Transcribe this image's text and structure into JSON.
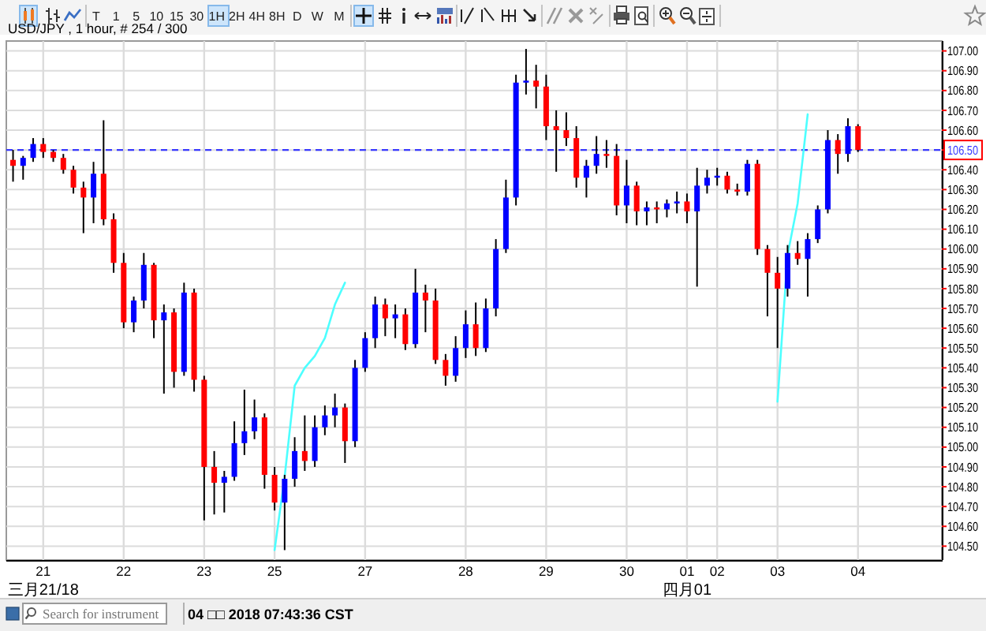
{
  "chart_data": {
    "type": "candlestick",
    "title": "USD/JPY , 1 hour, # 254 / 300",
    "categories": [
      null,
      null,
      null,
      "21",
      null,
      null,
      null,
      null,
      null,
      null,
      null,
      "22",
      null,
      null,
      null,
      null,
      null,
      null,
      null,
      "23",
      null,
      null,
      null,
      null,
      null,
      null,
      "25",
      null,
      null,
      null,
      null,
      null,
      null,
      null,
      null,
      "27",
      null,
      null,
      null,
      null,
      null,
      null,
      null,
      null,
      null,
      "28",
      null,
      null,
      null,
      null,
      null,
      null,
      null,
      "29",
      null,
      null,
      null,
      null,
      null,
      null,
      null,
      "30",
      null,
      null,
      null,
      null,
      null,
      "01",
      null,
      null,
      "02",
      null,
      null,
      null,
      null,
      null,
      "03",
      null,
      null,
      null,
      null,
      null,
      null,
      null,
      "04",
      null,
      null,
      null,
      null,
      null,
      null,
      null,
      null
    ],
    "ohlc": [
      [
        106.45,
        106.5,
        106.34,
        106.42
      ],
      [
        106.42,
        106.47,
        106.35,
        106.46
      ],
      [
        106.46,
        106.56,
        106.44,
        106.53
      ],
      [
        106.53,
        106.56,
        106.46,
        106.49
      ],
      [
        106.49,
        106.5,
        106.44,
        106.46
      ],
      [
        106.46,
        106.48,
        106.38,
        106.4
      ],
      [
        106.4,
        106.42,
        106.28,
        106.31
      ],
      [
        106.31,
        106.34,
        106.08,
        106.26
      ],
      [
        106.26,
        106.44,
        106.13,
        106.38
      ],
      [
        106.38,
        106.65,
        106.12,
        106.15
      ],
      [
        106.15,
        106.18,
        105.88,
        105.93
      ],
      [
        105.93,
        105.98,
        105.6,
        105.63
      ],
      [
        105.63,
        105.76,
        105.58,
        105.74
      ],
      [
        105.74,
        105.98,
        105.7,
        105.92
      ],
      [
        105.92,
        105.93,
        105.55,
        105.64
      ],
      [
        105.64,
        105.72,
        105.27,
        105.68
      ],
      [
        105.68,
        105.7,
        105.3,
        105.38
      ],
      [
        105.38,
        105.83,
        105.36,
        105.78
      ],
      [
        105.78,
        105.8,
        105.28,
        105.34
      ],
      [
        105.34,
        105.36,
        104.63,
        104.9
      ],
      [
        104.9,
        104.98,
        104.66,
        104.82
      ],
      [
        104.82,
        104.88,
        104.67,
        104.85
      ],
      [
        104.85,
        105.13,
        104.83,
        105.02
      ],
      [
        105.02,
        105.29,
        104.96,
        105.08
      ],
      [
        105.08,
        105.24,
        105.04,
        105.15
      ],
      [
        105.15,
        105.17,
        104.79,
        104.86
      ],
      [
        104.86,
        104.9,
        104.68,
        104.72
      ],
      [
        104.72,
        104.86,
        104.48,
        104.84
      ],
      [
        104.84,
        105.05,
        104.8,
        104.98
      ],
      [
        104.98,
        105.16,
        104.88,
        104.93
      ],
      [
        104.93,
        105.16,
        104.9,
        105.1
      ],
      [
        105.1,
        105.21,
        105.06,
        105.16
      ],
      [
        105.16,
        105.27,
        105.1,
        105.2
      ],
      [
        105.2,
        105.22,
        104.92,
        105.03
      ],
      [
        105.03,
        105.44,
        105.0,
        105.4
      ],
      [
        105.4,
        105.58,
        105.38,
        105.55
      ],
      [
        105.55,
        105.76,
        105.5,
        105.72
      ],
      [
        105.72,
        105.75,
        105.56,
        105.65
      ],
      [
        105.65,
        105.72,
        105.55,
        105.67
      ],
      [
        105.67,
        105.7,
        105.49,
        105.52
      ],
      [
        105.52,
        105.9,
        105.5,
        105.78
      ],
      [
        105.78,
        105.82,
        105.58,
        105.74
      ],
      [
        105.74,
        105.8,
        105.42,
        105.44
      ],
      [
        105.44,
        105.47,
        105.31,
        105.36
      ],
      [
        105.36,
        105.56,
        105.33,
        105.5
      ],
      [
        105.5,
        105.69,
        105.45,
        105.62
      ],
      [
        105.62,
        105.73,
        105.46,
        105.5
      ],
      [
        105.5,
        105.75,
        105.48,
        105.7
      ],
      [
        105.7,
        106.05,
        105.66,
        106.0
      ],
      [
        106.0,
        106.35,
        105.98,
        106.26
      ],
      [
        106.26,
        106.88,
        106.22,
        106.84
      ],
      [
        106.84,
        107.01,
        106.78,
        106.85
      ],
      [
        106.85,
        106.93,
        106.71,
        106.82
      ],
      [
        106.82,
        106.88,
        106.55,
        106.62
      ],
      [
        106.62,
        106.7,
        106.39,
        106.6
      ],
      [
        106.6,
        106.69,
        106.52,
        106.56
      ],
      [
        106.56,
        106.62,
        106.31,
        106.36
      ],
      [
        106.36,
        106.45,
        106.26,
        106.42
      ],
      [
        106.42,
        106.57,
        106.38,
        106.48
      ],
      [
        106.48,
        106.55,
        106.41,
        106.47
      ],
      [
        106.47,
        106.53,
        106.17,
        106.22
      ],
      [
        106.22,
        106.45,
        106.13,
        106.32
      ],
      [
        106.32,
        106.34,
        106.12,
        106.19
      ],
      [
        106.19,
        106.24,
        106.12,
        106.21
      ],
      [
        106.21,
        106.24,
        106.13,
        106.2
      ],
      [
        106.2,
        106.25,
        106.16,
        106.23
      ],
      [
        106.23,
        106.29,
        106.18,
        106.24
      ],
      [
        106.24,
        106.28,
        106.13,
        106.19
      ],
      [
        106.19,
        106.41,
        105.81,
        106.32
      ],
      [
        106.32,
        106.4,
        106.28,
        106.36
      ],
      [
        106.36,
        106.41,
        106.32,
        106.37
      ],
      [
        106.37,
        106.39,
        106.28,
        106.3
      ],
      [
        106.3,
        106.33,
        106.27,
        106.29
      ],
      [
        106.29,
        106.45,
        106.27,
        106.43
      ],
      [
        106.43,
        106.45,
        105.97,
        106.0
      ],
      [
        106.0,
        106.02,
        105.66,
        105.88
      ],
      [
        105.88,
        105.96,
        105.5,
        105.8
      ],
      [
        105.8,
        106.02,
        105.76,
        105.98
      ],
      [
        105.98,
        106.04,
        105.92,
        105.95
      ],
      [
        105.95,
        106.08,
        105.76,
        106.05
      ],
      [
        106.05,
        106.22,
        106.03,
        106.2
      ],
      [
        106.2,
        106.6,
        106.18,
        106.55
      ],
      [
        106.55,
        106.58,
        106.38,
        106.48
      ],
      [
        106.48,
        106.66,
        106.44,
        106.62
      ],
      [
        106.62,
        106.63,
        106.49,
        106.5
      ],
      null,
      null,
      null,
      null,
      null,
      null,
      null,
      null
    ],
    "ylim": [
      104.43,
      107.05
    ],
    "yticks": [
      {
        "value": 104.5,
        "label": "104.50"
      },
      {
        "value": 104.6,
        "label": "104.60"
      },
      {
        "value": 104.7,
        "label": "104.70"
      },
      {
        "value": 104.8,
        "label": "104.80"
      },
      {
        "value": 104.9,
        "label": "104.90"
      },
      {
        "value": 105.0,
        "label": "105.00"
      },
      {
        "value": 105.1,
        "label": "105.10"
      },
      {
        "value": 105.2,
        "label": "105.20"
      },
      {
        "value": 105.3,
        "label": "105.30"
      },
      {
        "value": 105.4,
        "label": "105.40"
      },
      {
        "value": 105.5,
        "label": "105.50"
      },
      {
        "value": 105.6,
        "label": "105.60"
      },
      {
        "value": 105.7,
        "label": "105.70"
      },
      {
        "value": 105.8,
        "label": "105.80"
      },
      {
        "value": 105.9,
        "label": "105.90"
      },
      {
        "value": 106.0,
        "label": "106.00"
      },
      {
        "value": 106.1,
        "label": "106.10"
      },
      {
        "value": 106.2,
        "label": "106.20"
      },
      {
        "value": 106.3,
        "label": "106.30"
      },
      {
        "value": 106.4,
        "label": "106.40"
      },
      {
        "value": 106.5,
        "label": null
      },
      {
        "value": 106.6,
        "label": "106.60"
      },
      {
        "value": 106.7,
        "label": "106.70"
      },
      {
        "value": 106.8,
        "label": "106.80"
      },
      {
        "value": 106.9,
        "label": "106.90"
      },
      {
        "value": 107.0,
        "label": "107.00"
      }
    ],
    "grid": true,
    "series": [
      {
        "type": "line",
        "color": "#4dffff",
        "values": [
          null,
          null,
          null,
          null,
          null,
          null,
          null,
          null,
          null,
          null,
          null,
          null,
          null,
          null,
          null,
          null,
          null,
          null,
          null,
          null,
          null,
          null,
          null,
          null,
          null,
          null,
          104.48,
          104.85,
          105.31,
          105.4,
          105.46,
          105.55,
          105.72,
          105.83,
          null,
          null,
          null,
          null,
          null,
          null,
          null,
          null,
          null,
          null,
          null,
          null,
          null,
          null,
          null,
          null,
          null,
          null,
          null,
          null,
          null,
          null,
          null,
          null,
          null,
          null,
          null,
          null,
          null,
          null,
          null,
          null,
          null,
          null,
          null,
          null,
          null,
          null,
          null,
          null,
          null,
          null,
          null,
          null,
          null,
          null,
          null,
          null,
          null,
          null,
          null,
          null,
          null,
          null,
          null,
          null,
          null,
          null,
          null
        ]
      },
      {
        "type": "line",
        "color": "#4dffff",
        "values": [
          null,
          null,
          null,
          null,
          null,
          null,
          null,
          null,
          null,
          null,
          null,
          null,
          null,
          null,
          null,
          null,
          null,
          null,
          null,
          null,
          null,
          null,
          null,
          null,
          null,
          null,
          null,
          null,
          null,
          null,
          null,
          null,
          null,
          null,
          null,
          null,
          null,
          null,
          null,
          null,
          null,
          null,
          null,
          null,
          null,
          null,
          null,
          null,
          null,
          null,
          null,
          null,
          null,
          null,
          null,
          null,
          null,
          null,
          null,
          null,
          null,
          null,
          null,
          null,
          null,
          null,
          null,
          null,
          null,
          null,
          null,
          null,
          null,
          null,
          null,
          null,
          105.23,
          105.97,
          106.23,
          106.68,
          null,
          null,
          null,
          null,
          null,
          null,
          null,
          null,
          null,
          null,
          null,
          null,
          null
        ]
      }
    ],
    "ref_lines": [
      {
        "axis": "y",
        "value": 106.5,
        "label": "106.50",
        "color": "#3a3aff",
        "line_style": "dashed"
      }
    ],
    "annotations": [
      "T 1 5 10 15 30 1H 2H 4H 8H D W M",
      "Search for instrument",
      "04 □□ 2018 07:43:36 CST",
      "三月21/18",
      "四月01"
    ]
  }
}
